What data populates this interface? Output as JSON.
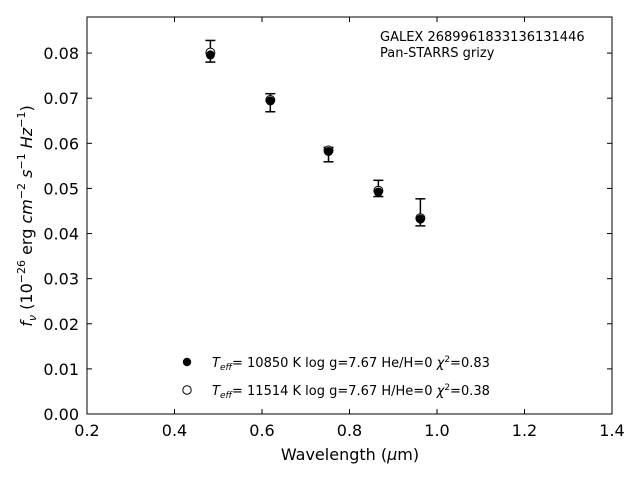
{
  "chart_data": {
    "type": "scatter",
    "xlabel": "Wavelength (μm)",
    "ylabel": "f_ν (10^-26 erg cm^-2 s^-1 Hz^-1)",
    "xlim": [
      0.2,
      1.4
    ],
    "ylim": [
      0.0,
      0.088
    ],
    "xticks": [
      0.2,
      0.4,
      0.6,
      0.8,
      1.0,
      1.2,
      1.4
    ],
    "xtick_labels": [
      "0.2",
      "0.4",
      "0.6",
      "0.8",
      "1.0",
      "1.2",
      "1.4"
    ],
    "yticks": [
      0.0,
      0.01,
      0.02,
      0.03,
      0.04,
      0.05,
      0.06,
      0.07,
      0.08
    ],
    "ytick_labels": [
      "0.00",
      "0.01",
      "0.02",
      "0.03",
      "0.04",
      "0.05",
      "0.06",
      "0.07",
      "0.08"
    ],
    "annotations": [
      "GALEX 2689961833136131446",
      "Pan-STARRS grizy"
    ],
    "observed": {
      "x": [
        0.482,
        0.619,
        0.752,
        0.866,
        0.962
      ],
      "y": [
        0.0798,
        0.069,
        0.0575,
        0.05,
        0.0447
      ],
      "yerr_low": [
        0.0018,
        0.002,
        0.0016,
        0.0018,
        0.003
      ],
      "yerr_high": [
        0.003,
        0.002,
        0.0016,
        0.0018,
        0.003
      ]
    },
    "series": [
      {
        "legend_label": "T_eff= 10850 K  log g=7.67  He/H=0  χ²=0.83",
        "marker": "filled-circle",
        "x": [
          0.482,
          0.619,
          0.752,
          0.866,
          0.962
        ],
        "y": [
          0.0796,
          0.0694,
          0.0582,
          0.0492,
          0.0432
        ]
      },
      {
        "legend_label": "T_eff= 11514 K  log g=7.67  H/He=0  χ²=0.38",
        "marker": "open-circle",
        "x": [
          0.482,
          0.619,
          0.752,
          0.866,
          0.962
        ],
        "y": [
          0.0801,
          0.0696,
          0.0584,
          0.0495,
          0.0434
        ]
      }
    ],
    "legend": {
      "placement": "lower-center",
      "entries": [
        {
          "teff": "10850",
          "logg": "7.67",
          "comp_ratio": "He/H=0",
          "chi2": "0.83"
        },
        {
          "teff": "11514",
          "logg": "7.67",
          "comp_ratio": "H/He=0",
          "chi2": "0.38"
        }
      ]
    },
    "colors": {
      "marker": "#000000",
      "axes": "#000000",
      "background": "#ffffff"
    },
    "grid": false
  }
}
